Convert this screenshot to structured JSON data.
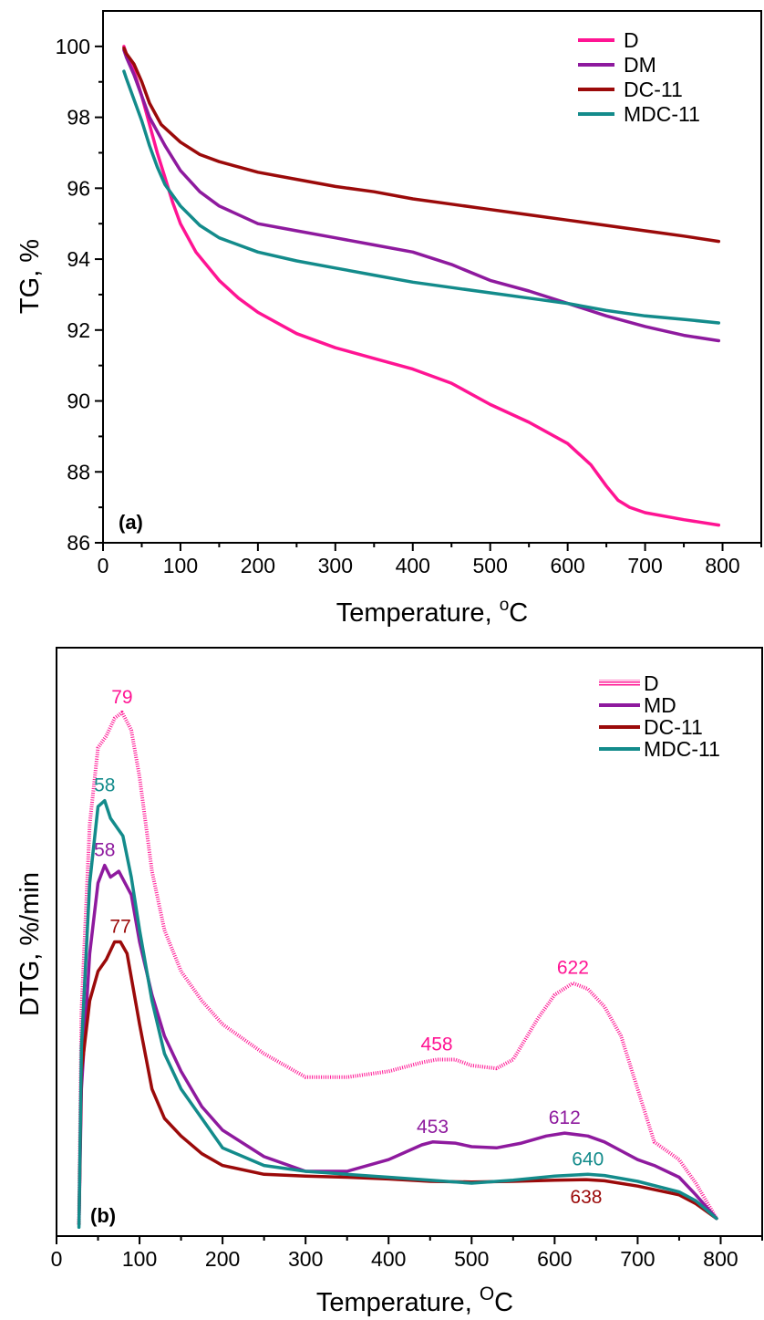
{
  "chart_data": [
    {
      "id": "a",
      "type": "line",
      "panel_label": "(a)",
      "xlabel": "Temperature, ",
      "xlabel_sup": "o",
      "xlabel_unit": "C",
      "ylabel": "TG, %",
      "xlim": [
        0,
        850
      ],
      "ylim": [
        86,
        101
      ],
      "xticks": [
        0,
        100,
        200,
        300,
        400,
        500,
        600,
        700,
        800
      ],
      "yticks": [
        86,
        88,
        90,
        92,
        94,
        96,
        98,
        100
      ],
      "legend_position": "top-right",
      "series": [
        {
          "name": "D",
          "color": "#ff1493",
          "points": [
            [
              27,
              100
            ],
            [
              30,
              99.8
            ],
            [
              40,
              99.3
            ],
            [
              50,
              98.6
            ],
            [
              60,
              97.8
            ],
            [
              70,
              97.0
            ],
            [
              80,
              96.3
            ],
            [
              90,
              95.6
            ],
            [
              100,
              95.0
            ],
            [
              120,
              94.2
            ],
            [
              150,
              93.4
            ],
            [
              175,
              92.9
            ],
            [
              200,
              92.5
            ],
            [
              250,
              91.9
            ],
            [
              300,
              91.5
            ],
            [
              350,
              91.2
            ],
            [
              400,
              90.9
            ],
            [
              450,
              90.5
            ],
            [
              500,
              89.9
            ],
            [
              550,
              89.4
            ],
            [
              600,
              88.8
            ],
            [
              630,
              88.2
            ],
            [
              650,
              87.6
            ],
            [
              665,
              87.2
            ],
            [
              680,
              87.0
            ],
            [
              700,
              86.85
            ],
            [
              750,
              86.65
            ],
            [
              795,
              86.5
            ]
          ]
        },
        {
          "name": "DM",
          "color": "#8e1a9e",
          "points": [
            [
              27,
              99.9
            ],
            [
              30,
              99.7
            ],
            [
              40,
              99.2
            ],
            [
              50,
              98.6
            ],
            [
              60,
              98.0
            ],
            [
              80,
              97.2
            ],
            [
              100,
              96.5
            ],
            [
              125,
              95.9
            ],
            [
              150,
              95.5
            ],
            [
              200,
              95.0
            ],
            [
              250,
              94.8
            ],
            [
              300,
              94.6
            ],
            [
              350,
              94.4
            ],
            [
              400,
              94.2
            ],
            [
              450,
              93.85
            ],
            [
              500,
              93.4
            ],
            [
              550,
              93.1
            ],
            [
              600,
              92.75
            ],
            [
              650,
              92.4
            ],
            [
              700,
              92.1
            ],
            [
              750,
              91.85
            ],
            [
              795,
              91.7
            ]
          ]
        },
        {
          "name": "DC-11",
          "color": "#9b0a0a",
          "points": [
            [
              27,
              99.95
            ],
            [
              30,
              99.8
            ],
            [
              40,
              99.5
            ],
            [
              50,
              99.0
            ],
            [
              60,
              98.4
            ],
            [
              75,
              97.8
            ],
            [
              100,
              97.3
            ],
            [
              125,
              96.95
            ],
            [
              150,
              96.75
            ],
            [
              200,
              96.45
            ],
            [
              250,
              96.25
            ],
            [
              300,
              96.05
            ],
            [
              350,
              95.9
            ],
            [
              400,
              95.7
            ],
            [
              450,
              95.55
            ],
            [
              500,
              95.4
            ],
            [
              550,
              95.25
            ],
            [
              600,
              95.1
            ],
            [
              650,
              94.95
            ],
            [
              700,
              94.8
            ],
            [
              750,
              94.65
            ],
            [
              795,
              94.5
            ]
          ]
        },
        {
          "name": "MDC-11",
          "color": "#138b8b",
          "points": [
            [
              27,
              99.3
            ],
            [
              30,
              99.1
            ],
            [
              40,
              98.5
            ],
            [
              50,
              97.9
            ],
            [
              60,
              97.2
            ],
            [
              70,
              96.6
            ],
            [
              80,
              96.1
            ],
            [
              100,
              95.5
            ],
            [
              125,
              94.95
            ],
            [
              150,
              94.6
            ],
            [
              200,
              94.2
            ],
            [
              250,
              93.95
            ],
            [
              300,
              93.75
            ],
            [
              350,
              93.55
            ],
            [
              400,
              93.35
            ],
            [
              450,
              93.2
            ],
            [
              500,
              93.05
            ],
            [
              550,
              92.9
            ],
            [
              600,
              92.75
            ],
            [
              650,
              92.55
            ],
            [
              700,
              92.4
            ],
            [
              750,
              92.3
            ],
            [
              795,
              92.2
            ]
          ]
        }
      ]
    },
    {
      "id": "b",
      "type": "line",
      "panel_label": "(b)",
      "xlabel": "Temperature, ",
      "xlabel_sup": "O",
      "xlabel_unit": "C",
      "ylabel": "DTG,  %/min",
      "xlim": [
        0,
        850
      ],
      "ylim": [
        0,
        100
      ],
      "xticks": [
        0,
        100,
        200,
        300,
        400,
        500,
        600,
        700,
        800
      ],
      "yticks": [],
      "legend_position": "top-right",
      "series": [
        {
          "name": "D",
          "color": "#ff1493",
          "style": "hatched",
          "points": [
            [
              27,
              2
            ],
            [
              30,
              38
            ],
            [
              40,
              70
            ],
            [
              50,
              83
            ],
            [
              60,
              85
            ],
            [
              70,
              88
            ],
            [
              79,
              89
            ],
            [
              90,
              86
            ],
            [
              100,
              78
            ],
            [
              115,
              62
            ],
            [
              130,
              52
            ],
            [
              150,
              45
            ],
            [
              175,
              40
            ],
            [
              200,
              36
            ],
            [
              250,
              31
            ],
            [
              300,
              27
            ],
            [
              350,
              27
            ],
            [
              400,
              28
            ],
            [
              440,
              29.5
            ],
            [
              458,
              30
            ],
            [
              480,
              30
            ],
            [
              500,
              29
            ],
            [
              530,
              28.5
            ],
            [
              550,
              30
            ],
            [
              580,
              37
            ],
            [
              600,
              41
            ],
            [
              622,
              43
            ],
            [
              640,
              42
            ],
            [
              660,
              39
            ],
            [
              680,
              34
            ],
            [
              700,
              25
            ],
            [
              720,
              16
            ],
            [
              750,
              13
            ],
            [
              770,
              9
            ],
            [
              795,
              3
            ]
          ]
        },
        {
          "name": "MD",
          "color": "#8e1a9e",
          "points": [
            [
              27,
              2
            ],
            [
              30,
              25
            ],
            [
              40,
              48
            ],
            [
              50,
              60
            ],
            [
              58,
              63
            ],
            [
              65,
              61
            ],
            [
              75,
              62
            ],
            [
              90,
              58
            ],
            [
              100,
              50
            ],
            [
              115,
              41
            ],
            [
              130,
              34
            ],
            [
              150,
              28
            ],
            [
              175,
              22
            ],
            [
              200,
              18
            ],
            [
              250,
              13.5
            ],
            [
              300,
              11
            ],
            [
              350,
              11
            ],
            [
              400,
              13
            ],
            [
              440,
              15.5
            ],
            [
              453,
              16
            ],
            [
              480,
              15.8
            ],
            [
              500,
              15.2
            ],
            [
              530,
              15
            ],
            [
              560,
              15.8
            ],
            [
              590,
              17
            ],
            [
              612,
              17.5
            ],
            [
              640,
              17
            ],
            [
              660,
              16
            ],
            [
              680,
              14.5
            ],
            [
              700,
              13
            ],
            [
              720,
              12
            ],
            [
              750,
              10
            ],
            [
              770,
              7
            ],
            [
              795,
              3
            ]
          ]
        },
        {
          "name": "DC-11",
          "color": "#9b0a0a",
          "points": [
            [
              27,
              2
            ],
            [
              30,
              28
            ],
            [
              40,
              40
            ],
            [
              50,
              45
            ],
            [
              60,
              47
            ],
            [
              70,
              50
            ],
            [
              77,
              50
            ],
            [
              85,
              48
            ],
            [
              100,
              36
            ],
            [
              115,
              25
            ],
            [
              130,
              20
            ],
            [
              150,
              17
            ],
            [
              175,
              14
            ],
            [
              200,
              12
            ],
            [
              250,
              10.5
            ],
            [
              300,
              10.2
            ],
            [
              350,
              10
            ],
            [
              400,
              9.7
            ],
            [
              450,
              9.3
            ],
            [
              500,
              9.2
            ],
            [
              550,
              9.3
            ],
            [
              600,
              9.5
            ],
            [
              638,
              9.6
            ],
            [
              660,
              9.4
            ],
            [
              700,
              8.5
            ],
            [
              750,
              7
            ],
            [
              770,
              5.5
            ],
            [
              795,
              3
            ]
          ]
        },
        {
          "name": "MDC-11",
          "color": "#138b8b",
          "points": [
            [
              27,
              1.5
            ],
            [
              30,
              32
            ],
            [
              40,
              60
            ],
            [
              50,
              73
            ],
            [
              58,
              74
            ],
            [
              65,
              71
            ],
            [
              80,
              68
            ],
            [
              90,
              61
            ],
            [
              100,
              52
            ],
            [
              115,
              40
            ],
            [
              130,
              31
            ],
            [
              150,
              25
            ],
            [
              175,
              20
            ],
            [
              200,
              15
            ],
            [
              250,
              12
            ],
            [
              300,
              11
            ],
            [
              350,
              10.5
            ],
            [
              400,
              10
            ],
            [
              450,
              9.5
            ],
            [
              500,
              9
            ],
            [
              550,
              9.5
            ],
            [
              600,
              10.2
            ],
            [
              640,
              10.5
            ],
            [
              660,
              10.3
            ],
            [
              700,
              9.3
            ],
            [
              750,
              7.5
            ],
            [
              770,
              6
            ],
            [
              795,
              3
            ]
          ]
        }
      ],
      "annotations": [
        {
          "text": "79",
          "x": 79,
          "y": 89,
          "color": "#ff1493",
          "anchor": "above"
        },
        {
          "text": "58",
          "x": 58,
          "y": 74,
          "color": "#138b8b",
          "anchor": "above"
        },
        {
          "text": "58",
          "x": 58,
          "y": 63,
          "color": "#8e1a9e",
          "anchor": "above"
        },
        {
          "text": "77",
          "x": 77,
          "y": 50,
          "color": "#9b0a0a",
          "anchor": "above"
        },
        {
          "text": "622",
          "x": 622,
          "y": 43,
          "color": "#ff1493",
          "anchor": "above"
        },
        {
          "text": "458",
          "x": 458,
          "y": 30,
          "color": "#ff1493",
          "anchor": "above"
        },
        {
          "text": "612",
          "x": 612,
          "y": 17.5,
          "color": "#8e1a9e",
          "anchor": "above"
        },
        {
          "text": "453",
          "x": 453,
          "y": 16,
          "color": "#8e1a9e",
          "anchor": "above"
        },
        {
          "text": "640",
          "x": 640,
          "y": 10.5,
          "color": "#138b8b",
          "anchor": "above"
        },
        {
          "text": "638",
          "x": 638,
          "y": 9.6,
          "color": "#9b0a0a",
          "anchor": "below"
        }
      ]
    }
  ]
}
